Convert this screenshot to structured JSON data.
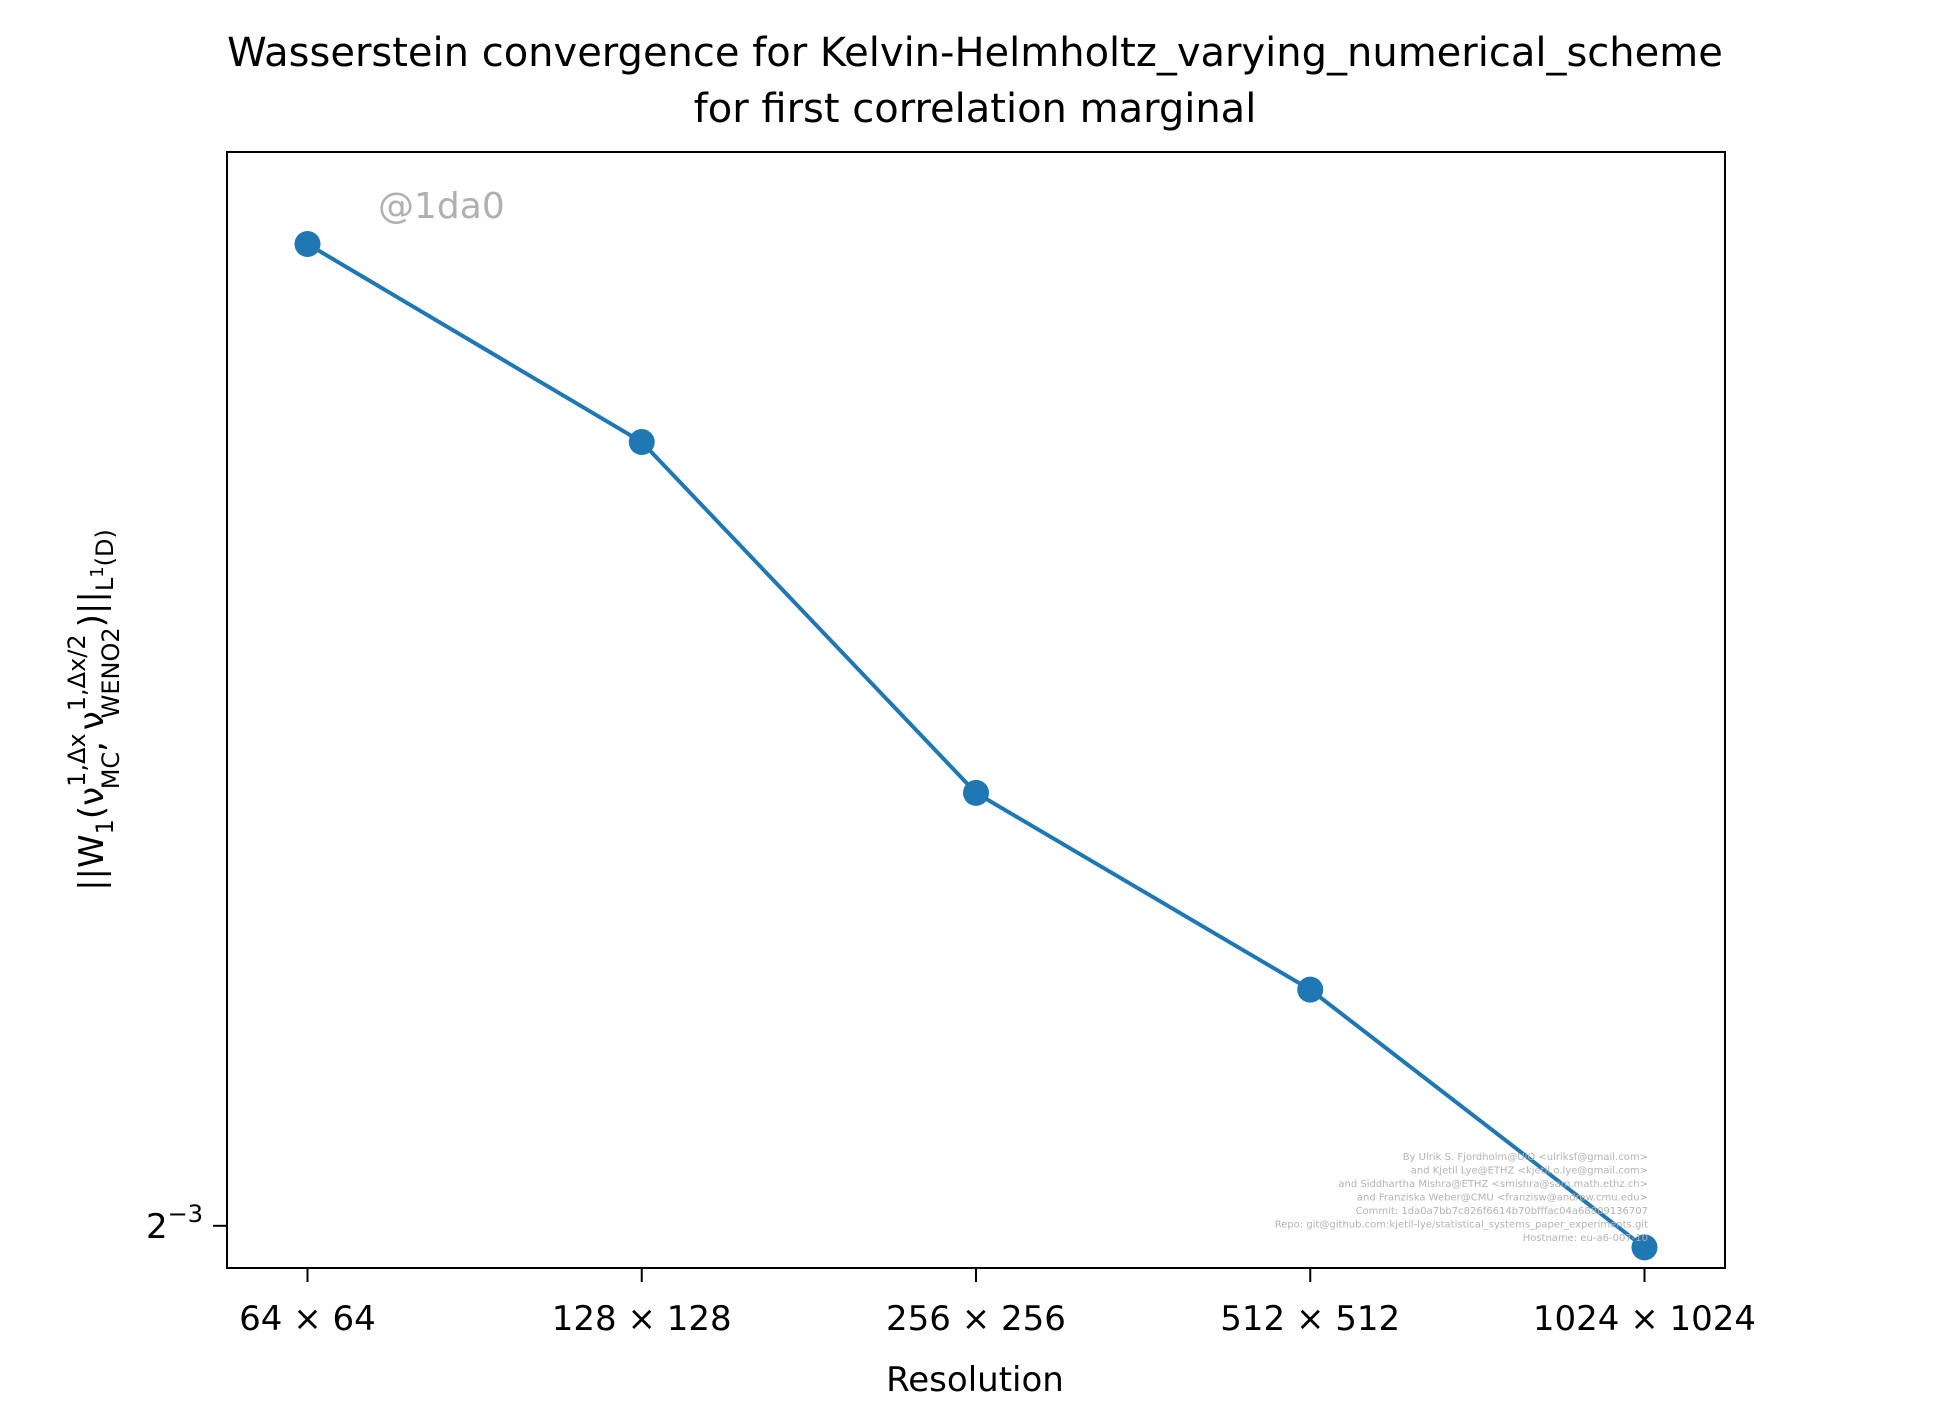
{
  "colors": {
    "series": "#1f77b4",
    "axes": "#000000",
    "watermark": "#b0b0b0",
    "credits": "#b3b3b3"
  },
  "chart_data": {
    "type": "line",
    "title": "Wasserstein convergence for Kelvin-Helmholtz_varying_numerical_scheme\nfor first correlation marginal",
    "title_lines": [
      "Wasserstein convergence for Kelvin-Helmholtz_varying_numerical_scheme",
      "for first correlation marginal"
    ],
    "xlabel": "Resolution",
    "ylabel": "||W_1(ν_MC^{1,Δx}, ν_WENO2^{1,Δx/2})||_{L^1(D)}",
    "ylabel_parts": {
      "norm_open": "||W",
      "w_sub": "1",
      "open_paren": "(ν",
      "nu1_sup": "1,Δx",
      "nu1_sub": "MC",
      "comma": ", ν",
      "nu2_sup": "1,Δx/2",
      "nu2_sub": "WENO2",
      "close": ")||",
      "norm_sub": "L",
      "norm_sub_sup": "1",
      "norm_sub_tail": "(D)"
    },
    "x_scale": "log2",
    "y_scale": "log2",
    "categories": [
      "64 × 64",
      "128 × 128",
      "256 × 256",
      "512 × 512",
      "1024 × 1024"
    ],
    "x": [
      64,
      128,
      256,
      512,
      1024
    ],
    "series": [
      {
        "values": [
          0.233,
          0.2055,
          0.1645,
          0.1452,
          0.1233
        ],
        "marker": "circle"
      }
    ],
    "ylim": [
      0.1217,
      0.247
    ],
    "yticks": [
      {
        "value": 0.125,
        "base": "2",
        "exponent": "−3"
      }
    ],
    "grid": false,
    "legend": "none",
    "watermark": "@1da0",
    "credits": [
      "By Ulrik S. Fjordholm@UiO <ulriksf@gmail.com>",
      "and Kjetil Lye@ETHZ <kjetil.o.lye@gmail.com>",
      "and Siddhartha Mishra@ETHZ <smishra@sam.math.ethz.ch>",
      "and Franziska Weber@CMU <franzisw@andrew.cmu.edu>",
      "Commit: 1da0a7bb7c826f6614b70bfffac04a68809136707",
      "Repo: git@github.com:kjetil-lye/statistical_systems_paper_experiments.git",
      "Hostname: eu-a6-007-10"
    ]
  }
}
